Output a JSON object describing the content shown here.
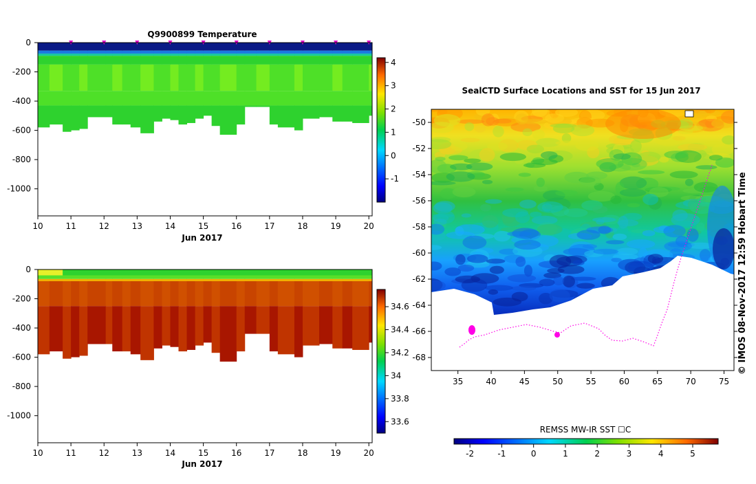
{
  "chart_data": [
    {
      "type": "heatmap",
      "title": "Q9900899  Temperature",
      "xlabel": "Jun 2017",
      "ylabel": "",
      "x_ticks": [
        10,
        11,
        12,
        13,
        14,
        15,
        16,
        17,
        18,
        19,
        20
      ],
      "y_ticks": [
        0,
        -200,
        -400,
        -600,
        -800,
        -1000
      ],
      "xlim": [
        10,
        20.1
      ],
      "ylim": [
        -1185,
        0
      ],
      "profile_times": [
        10.0,
        10.35,
        10.75,
        11.0,
        11.25,
        11.5,
        12.05,
        12.25,
        12.55,
        12.8,
        13.1,
        13.5,
        13.75,
        14.0,
        14.25,
        14.5,
        14.75,
        15.0,
        15.25,
        15.5,
        16.0,
        16.25,
        16.6,
        17.0,
        17.25,
        17.75,
        18.0,
        18.5,
        18.9,
        19.2,
        19.5,
        20.0
      ],
      "profile_max_depth": [
        -580,
        -560,
        -610,
        -600,
        -590,
        -510,
        -510,
        -560,
        -560,
        -580,
        -620,
        -540,
        -520,
        -530,
        -560,
        -550,
        -520,
        -500,
        -570,
        -630,
        -560,
        -440,
        -440,
        -560,
        -580,
        -600,
        -520,
        -510,
        -540,
        -540,
        -550,
        -500
      ],
      "colorbar": {
        "min": -2,
        "max": 4.2,
        "ticks": [
          4,
          3,
          2,
          1,
          0,
          -1
        ]
      },
      "dive_markers": [
        11,
        12,
        13,
        14,
        15,
        16,
        17,
        18,
        19,
        20
      ]
    },
    {
      "type": "heatmap",
      "title": "",
      "xlabel": "Jun 2017",
      "ylabel": "",
      "x_ticks": [
        10,
        11,
        12,
        13,
        14,
        15,
        16,
        17,
        18,
        19,
        20
      ],
      "y_ticks": [
        0,
        -200,
        -400,
        -600,
        -800,
        -1000
      ],
      "xlim": [
        10,
        20.1
      ],
      "ylim": [
        -1185,
        0
      ],
      "colorbar": {
        "min": 33.5,
        "max": 34.75,
        "ticks": [
          34.6,
          34.4,
          34.2,
          34,
          33.8,
          33.6
        ]
      }
    },
    {
      "type": "heatmap",
      "title": "SealCTD Surface Locations and SST for 15 Jun 2017",
      "xlabel": "",
      "ylabel": "",
      "x_ticks": [
        35,
        40,
        45,
        50,
        55,
        60,
        65,
        70,
        75
      ],
      "y_ticks": [
        -50,
        -52,
        -54,
        -56,
        -58,
        -60,
        -62,
        -64,
        -66,
        -68
      ],
      "xlim": [
        31,
        76.5
      ],
      "ylim": [
        -69,
        -49
      ],
      "colorbar": {
        "label": "REMSS MW-IR SST ☐C",
        "min": -2.5,
        "max": 5.8,
        "ticks": [
          -2,
          -1,
          0,
          1,
          2,
          3,
          4,
          5
        ]
      }
    }
  ],
  "side_caption": "©  IMOS 08-Nov-2017 12:59 Hobart Time",
  "colors": {
    "surface_blue": "#0a1a86",
    "temp_green_dark": "#2ed22e",
    "temp_green_mid": "#4ee028",
    "temp_green_light": "#74ec20",
    "sal_red_1": "#a81600",
    "sal_red_2": "#c03400",
    "track_magenta": "#ff00e6"
  }
}
